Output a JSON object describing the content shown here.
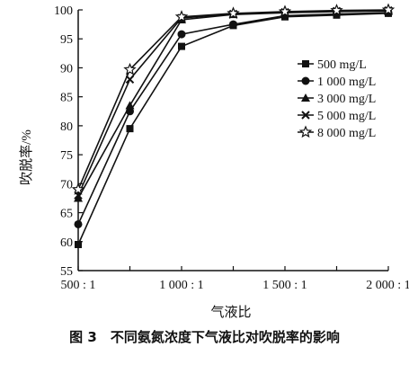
{
  "figure_caption": "图 3　不同氨氮浓度下气液比对吹脱率的影响",
  "chart_data": {
    "type": "line",
    "xlabel": "气液比",
    "ylabel": "吹脱率/%",
    "x": [
      500,
      750,
      1000,
      1250,
      1500,
      1750,
      2000
    ],
    "xlim": [
      500,
      2000
    ],
    "ylim": [
      55,
      100
    ],
    "xticks": [
      500,
      1000,
      1500,
      2000
    ],
    "xtick_labels": [
      "500 : 1",
      "1 000 : 1",
      "1 500 : 1",
      "2 000 : 1"
    ],
    "yticks": [
      55,
      60,
      65,
      70,
      75,
      80,
      85,
      90,
      95,
      100
    ],
    "ytick_labels": [
      "55",
      "60",
      "65",
      "70",
      "75",
      "80",
      "85",
      "90",
      "95",
      "100"
    ],
    "grid": false,
    "legend_position": "right",
    "series": [
      {
        "name": "500 mg/L",
        "marker": "square",
        "values": [
          59.5,
          79.5,
          93.7,
          97.3,
          98.8,
          99.1,
          99.4
        ]
      },
      {
        "name": "1 000 mg/L",
        "marker": "circle",
        "values": [
          63.0,
          82.5,
          95.8,
          97.5,
          99.0,
          99.3,
          99.5
        ]
      },
      {
        "name": "3 000 mg/L",
        "marker": "triangle",
        "values": [
          67.5,
          83.5,
          98.3,
          99.2,
          99.5,
          99.7,
          99.8
        ]
      },
      {
        "name": "5 000 mg/L",
        "marker": "cross",
        "values": [
          68.0,
          88.0,
          98.6,
          99.3,
          99.6,
          99.8,
          99.9
        ]
      },
      {
        "name": "8 000 mg/L",
        "marker": "star",
        "values": [
          69.0,
          89.7,
          98.8,
          99.4,
          99.7,
          99.9,
          100.0
        ]
      }
    ]
  }
}
